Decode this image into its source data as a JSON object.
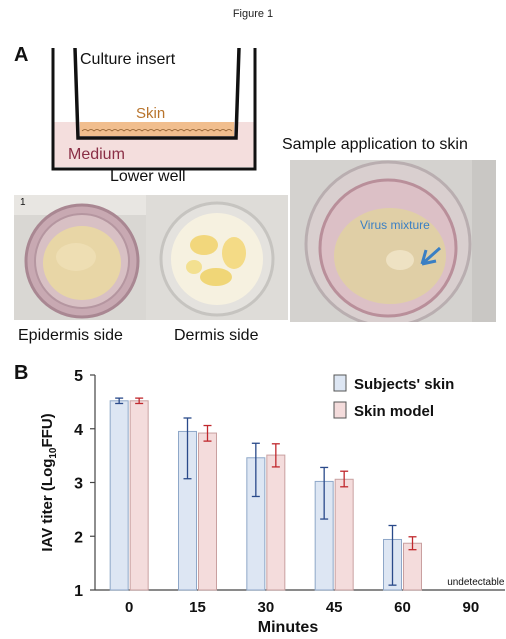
{
  "figure_title": "Figure 1",
  "panel_a": {
    "letter": "A",
    "culture_insert": "Culture insert",
    "skin": "Skin",
    "medium": "Medium",
    "lower_well": "Lower well",
    "sample_application": "Sample application to skin",
    "virus_mixture": "Virus mixture",
    "epidermis_side": "Epidermis side",
    "dermis_side": "Dermis side",
    "photo_number": "1",
    "colors": {
      "skin": "#b8742c",
      "medium": "#8a2e45",
      "medium_fill": "#f4dedd",
      "skin_fill": "#f1be8e",
      "arrow": "#3a7fc4"
    }
  },
  "panel_b": {
    "letter": "B",
    "undetectable_label": "undetectable",
    "ylabel_main": "IAV titer (Log",
    "ylabel_sub": "10",
    "ylabel_end": "FFU)"
  },
  "chart_data": {
    "type": "bar",
    "xlabel": "Minutes",
    "ylabel": "IAV titer (Log10FFU)",
    "categories": [
      "0",
      "15",
      "30",
      "45",
      "60",
      "90"
    ],
    "ylim": [
      1,
      5
    ],
    "yticks": [
      "1",
      "2",
      "3",
      "4",
      "5"
    ],
    "legend_position": "top-right",
    "series": [
      {
        "name": "Subjects' skin",
        "values": [
          4.52,
          3.95,
          3.46,
          3.02,
          1.94,
          null
        ],
        "err_low": [
          0.05,
          0.88,
          0.72,
          0.7,
          0.85,
          null
        ],
        "err_high": [
          0.05,
          0.25,
          0.27,
          0.26,
          0.26,
          null
        ],
        "fill": "#dde6f3",
        "stroke": "#8ea7c8",
        "error_color": "#2a4a8a"
      },
      {
        "name": "Skin model",
        "values": [
          4.52,
          3.92,
          3.51,
          3.06,
          1.87,
          null
        ],
        "err_low": [
          0.05,
          0.15,
          0.22,
          0.14,
          0.12,
          null
        ],
        "err_high": [
          0.05,
          0.14,
          0.21,
          0.15,
          0.12,
          null
        ],
        "fill": "#f4dcdc",
        "stroke": "#c9a0a0",
        "error_color": "#c0282d"
      }
    ]
  }
}
